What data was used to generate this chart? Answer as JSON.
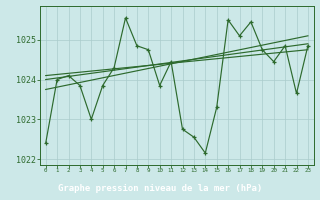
{
  "x": [
    0,
    1,
    2,
    3,
    4,
    5,
    6,
    7,
    8,
    9,
    10,
    11,
    12,
    13,
    14,
    15,
    16,
    17,
    18,
    19,
    20,
    21,
    22,
    23
  ],
  "pressure": [
    1022.4,
    1024.0,
    1024.1,
    1023.85,
    1023.0,
    1023.85,
    1024.3,
    1025.55,
    1024.85,
    1024.75,
    1023.85,
    1024.45,
    1022.75,
    1022.55,
    1022.15,
    1023.3,
    1025.5,
    1025.1,
    1025.45,
    1024.75,
    1024.45,
    1024.85,
    1023.65,
    1024.85
  ],
  "trend_lines": [
    {
      "x": [
        0,
        23
      ],
      "y": [
        1023.75,
        1025.1
      ]
    },
    {
      "x": [
        0,
        23
      ],
      "y": [
        1024.0,
        1024.9
      ]
    },
    {
      "x": [
        0,
        23
      ],
      "y": [
        1024.1,
        1024.75
      ]
    }
  ],
  "ylim": [
    1021.85,
    1025.85
  ],
  "xlim": [
    -0.5,
    23.5
  ],
  "yticks": [
    1022,
    1023,
    1024,
    1025
  ],
  "xticks": [
    0,
    1,
    2,
    3,
    4,
    5,
    6,
    7,
    8,
    9,
    10,
    11,
    12,
    13,
    14,
    15,
    16,
    17,
    18,
    19,
    20,
    21,
    22,
    23
  ],
  "xlabel": "Graphe pression niveau de la mer (hPa)",
  "line_color": "#2d6a2d",
  "bg_color": "#cce8e8",
  "grid_color": "#aacccc",
  "label_color": "#2d6a2d",
  "banner_bg": "#2d6a2d",
  "banner_fg": "#ffffff",
  "ytick_fontsize": 6.0,
  "xtick_fontsize": 4.2,
  "xlabel_fontsize": 6.5
}
